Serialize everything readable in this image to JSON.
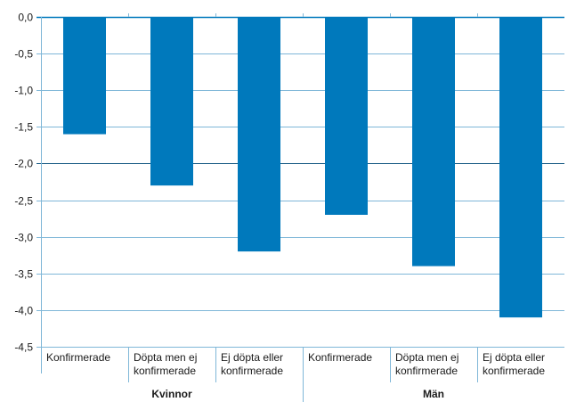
{
  "chart_data": {
    "type": "bar",
    "title": "",
    "xlabel": "",
    "ylabel": "",
    "ylim": [
      -4.5,
      0
    ],
    "yticks": [
      0,
      -0.5,
      -1,
      -1.5,
      -2,
      -2.5,
      -3,
      -3.5,
      -4,
      -4.5
    ],
    "ytick_labels": [
      "0,0",
      "-0,5",
      "-1,0",
      "-1,5",
      "-2,0",
      "-2,5",
      "-3,0",
      "-3,5",
      "-4,0",
      "-4,5"
    ],
    "grid": true,
    "legend": "none",
    "categories": [
      [
        "Konfirmerade"
      ],
      [
        "Döpta men ej",
        "konfirmerade"
      ],
      [
        "Ej döpta eller",
        "konfirmerade"
      ],
      [
        "Konfirmerade"
      ],
      [
        "Döpta men ej",
        "konfirmerade"
      ],
      [
        "Ej döpta eller",
        "konfirmerade"
      ]
    ],
    "groups": [
      {
        "label": "Kvinnor",
        "count": 3
      },
      {
        "label": "Män",
        "count": 3
      }
    ],
    "values": [
      -1.6,
      -2.3,
      -3.2,
      -2.7,
      -3.4,
      -4.1
    ],
    "colors": {
      "bar": "#0079BC",
      "grid": "#7FB7D8",
      "zero_line": "#0079BC",
      "highlight_grid": "#1C5E86",
      "axis": "#7FB7D8"
    }
  }
}
